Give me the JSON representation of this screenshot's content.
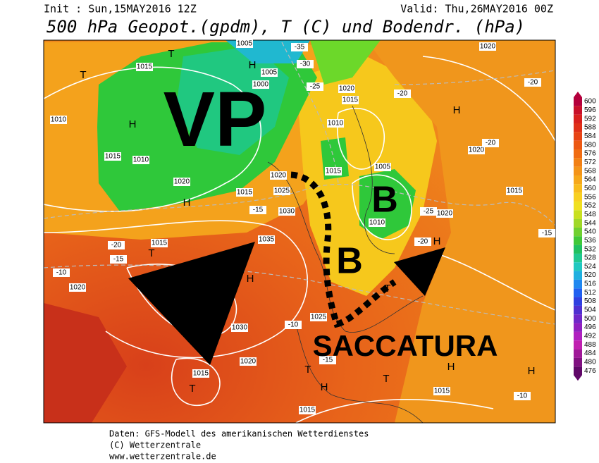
{
  "header": {
    "init": "Init : Sun,15MAY2016 12Z",
    "valid": "Valid: Thu,26MAY2016 00Z",
    "title": "500 hPa Geopot.(gpdm), T (C) und Bodendr. (hPa)"
  },
  "colorbar": {
    "labels": [
      "600",
      "596",
      "592",
      "588",
      "584",
      "580",
      "576",
      "572",
      "568",
      "564",
      "560",
      "556",
      "552",
      "548",
      "544",
      "540",
      "536",
      "532",
      "528",
      "524",
      "520",
      "516",
      "512",
      "508",
      "504",
      "500",
      "496",
      "492",
      "488",
      "484",
      "480",
      "476"
    ]
  },
  "map_labels": [
    "T",
    "H",
    "1015",
    "1005",
    "T",
    "1000",
    "H",
    "1010",
    "H",
    "1015",
    "1010",
    "1020",
    "H",
    "1015",
    "1025",
    "1030",
    "1020",
    "1035",
    "H",
    "1030",
    "1020",
    "1015",
    "T",
    "1020",
    "T",
    "1015",
    "1015",
    "1020",
    "1010",
    "1015",
    "1005",
    "1010",
    "1020",
    "1015",
    "1020",
    "H",
    "T",
    "H",
    "T",
    "H",
    "H",
    "1015",
    "1015",
    "1025",
    "T",
    "-30",
    "-35",
    "-25",
    "-20",
    "-20",
    "-15",
    "-20",
    "-15",
    "-10",
    "-10",
    "-15",
    "-25",
    "-20",
    "-10",
    "-15",
    "-20",
    "1020",
    "1005"
  ],
  "annotations": {
    "vp": "VP",
    "b1": "B",
    "b2": "B",
    "saccatura": "SACCATURA"
  },
  "footer": [
    "Daten: GFS-Modell des amerikanischen Wetterdienstes",
    "(C) Wetterzentrale",
    "www.wetterzentrale.de"
  ]
}
